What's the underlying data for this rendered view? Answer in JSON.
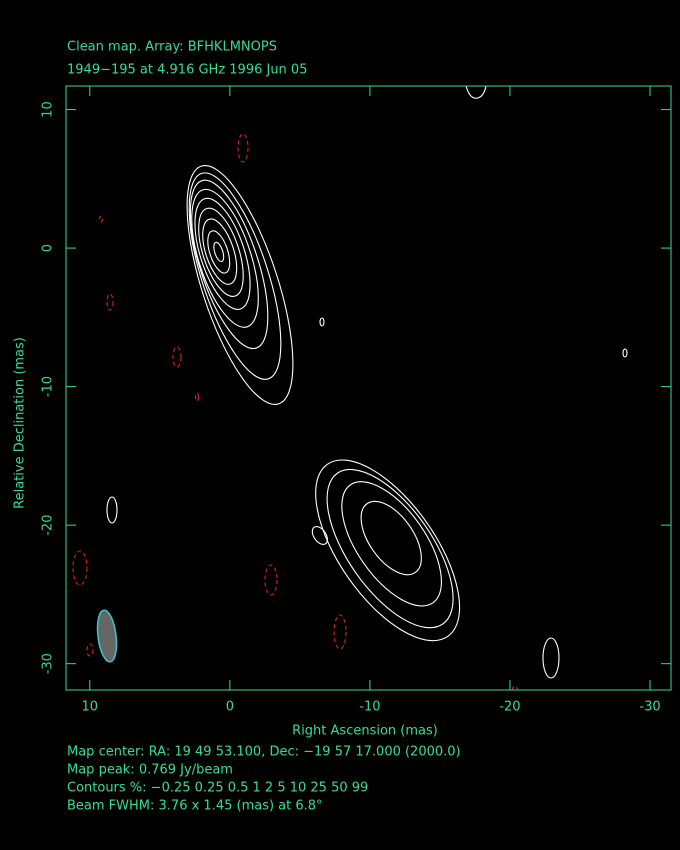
{
  "chart_data": {
    "type": "contour",
    "title": "Clean map.  Array: BFHKLMNOPS",
    "subtitle": "1949−195 at 4.916 GHz 1996 Jun 05",
    "x_label": "Right Ascension  (mas)",
    "y_label": "Relative Declination  (mas)",
    "xlim": [
      11.7,
      -31.5
    ],
    "ylim": [
      -31.9,
      11.7
    ],
    "xticks": [
      10,
      0,
      -10,
      -20,
      -30
    ],
    "yticks": [
      10,
      0,
      -10,
      -20,
      -30
    ],
    "notes": [
      "Map center:  RA: 19 49 53.100,  Dec: −19 57 17.000 (2000.0)",
      "Map peak: 0.769 Jy/beam",
      "Contours %: −0.25 0.25 0.5 1 2 5 10 25 50 99",
      "Beam FWHM: 3.76 x 1.45 (mas) at 6.8°"
    ],
    "color": "#33dd99"
  }
}
